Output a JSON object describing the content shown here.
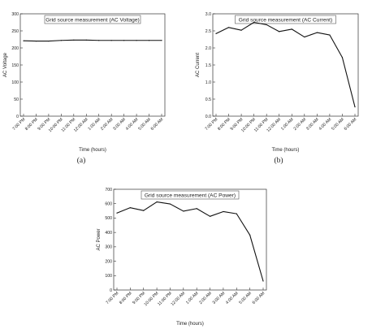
{
  "chart_data": [
    {
      "type": "line",
      "title": "Grid source measurement (AC Voltage)",
      "xlabel": "Time (hours)",
      "ylabel": "AC Voltage",
      "caption": "(a)",
      "categories": [
        "7:00 PM",
        "8:00 PM",
        "9:00 PM",
        "10:00 PM",
        "11:00 PM",
        "12:00 AM",
        "1:00 AM",
        "2:00 AM",
        "3:00 AM",
        "4:00 AM",
        "5:00 AM",
        "6:00 AM"
      ],
      "yticks": [
        "0",
        "50",
        "100",
        "150",
        "200",
        "250",
        "300"
      ],
      "ylim": [
        0,
        300
      ],
      "values": [
        221,
        220,
        220,
        222,
        223,
        223,
        222,
        222,
        222,
        222,
        222,
        222
      ]
    },
    {
      "type": "line",
      "title": "Grid source measurement (AC Current)",
      "xlabel": "Time (hours)",
      "ylabel": "AC Current",
      "caption": "(b)",
      "categories": [
        "7:00 PM",
        "8:00 PM",
        "9:00 PM",
        "10:00 PM",
        "11:00 PM",
        "12:00 AM",
        "1:00 AM",
        "2:00 AM",
        "3:00 AM",
        "4:00 AM",
        "5:00 AM",
        "6:00 AM"
      ],
      "yticks": [
        "0.0",
        "0.5",
        "1.0",
        "1.5",
        "2.0",
        "2.5",
        "3.0"
      ],
      "ylim": [
        0,
        3
      ],
      "values": [
        2.42,
        2.6,
        2.52,
        2.75,
        2.68,
        2.48,
        2.55,
        2.32,
        2.45,
        2.38,
        1.72,
        0.27
      ]
    },
    {
      "type": "line",
      "title": "Grid source measurement (AC Power)",
      "xlabel": "Time (hours)",
      "ylabel": "AC Power",
      "caption": "",
      "categories": [
        "7:00 PM",
        "8:00 PM",
        "9:00 PM",
        "10:00 PM",
        "11:00 PM",
        "12:00 AM",
        "1:00 AM",
        "2:00 AM",
        "3:00 AM",
        "4:00 AM",
        "5:00 AM",
        "6:00 AM"
      ],
      "yticks": [
        "0",
        "100",
        "200",
        "300",
        "400",
        "500",
        "600",
        "700"
      ],
      "ylim": [
        0,
        700
      ],
      "values": [
        535,
        572,
        552,
        612,
        598,
        548,
        566,
        512,
        545,
        530,
        382,
        62
      ]
    }
  ]
}
